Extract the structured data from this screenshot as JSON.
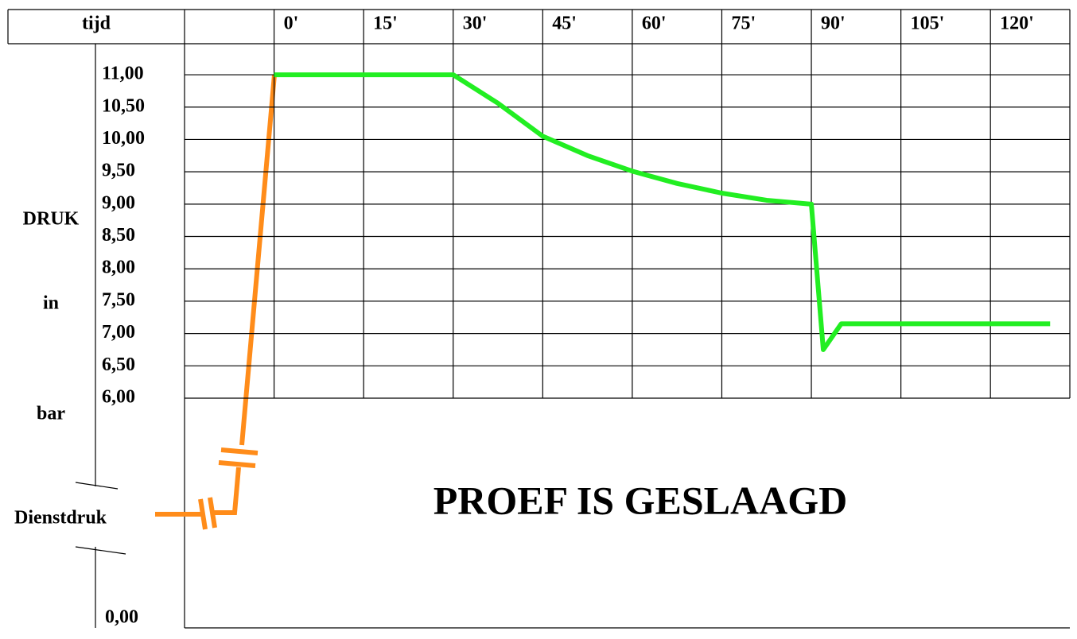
{
  "chart_data": {
    "type": "line",
    "x_label": "tijd",
    "y_label": [
      "DRUK",
      "in",
      "bar"
    ],
    "baseline_label": "Dienstdruk",
    "axis_origin_label": "0,00",
    "annotation": "PROEF IS GESLAAGD",
    "color": "#22ee22",
    "x": [
      0,
      30,
      37.5,
      45,
      52.5,
      60,
      67.5,
      75,
      82.5,
      90,
      92,
      95,
      130
    ],
    "values": [
      11,
      11,
      10.56,
      10.05,
      9.75,
      9.51,
      9.32,
      9.17,
      9.06,
      9.0,
      6.75,
      7.15,
      7.15
    ],
    "xlim": [
      -15,
      133.3
    ],
    "xticks": [
      {
        "value": 0,
        "label": "0'"
      },
      {
        "value": 15,
        "label": "15'"
      },
      {
        "value": 30,
        "label": "30'"
      },
      {
        "value": 45,
        "label": "45'"
      },
      {
        "value": 60,
        "label": "60'"
      },
      {
        "value": 75,
        "label": "75'"
      },
      {
        "value": 90,
        "label": "90'"
      },
      {
        "value": 105,
        "label": "105'"
      },
      {
        "value": 120,
        "label": "120'"
      }
    ],
    "ylim": [
      6,
      11.48
    ],
    "yticks": [
      {
        "value": 11,
        "label": "11,00"
      },
      {
        "value": 10.5,
        "label": "10,50"
      },
      {
        "value": 10,
        "label": "10,00"
      },
      {
        "value": 9.5,
        "label": "9,50"
      },
      {
        "value": 9,
        "label": "9,00"
      },
      {
        "value": 8.5,
        "label": "8,50"
      },
      {
        "value": 8,
        "label": "8,00"
      },
      {
        "value": 7.5,
        "label": "7,50"
      },
      {
        "value": 7,
        "label": "7,00"
      },
      {
        "value": 6.5,
        "label": "6,50"
      },
      {
        "value": 6,
        "label": "6,00"
      }
    ],
    "grid": true
  }
}
